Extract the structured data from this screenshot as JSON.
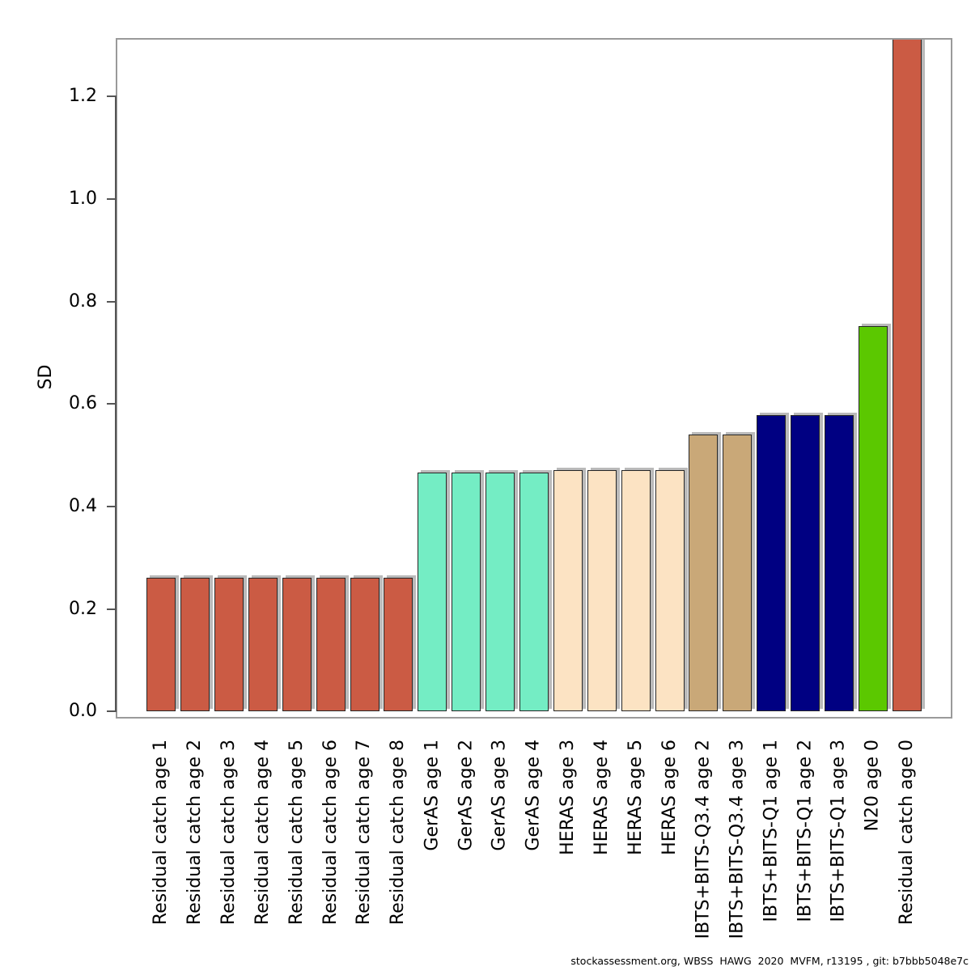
{
  "figure": {
    "ylabel": "SD",
    "footer": "stockassessment.org, WBSS  HAWG  2020  MVFM, r13195 , git: b7bbb5048e7c"
  },
  "chart_data": {
    "type": "bar",
    "title": "",
    "xlabel": "",
    "ylabel": "SD",
    "ylim": [
      0,
      1.32
    ],
    "grid": false,
    "legend": false,
    "yticks": [
      0.0,
      0.2,
      0.4,
      0.6,
      0.8,
      1.0,
      1.2
    ],
    "ytick_labels": [
      "0.0",
      "0.2",
      "0.4",
      "0.6",
      "0.8",
      "1.0",
      "1.2"
    ],
    "categories": [
      "Residual catch age 1",
      "Residual catch age 2",
      "Residual catch age 3",
      "Residual catch age 4",
      "Residual catch age 5",
      "Residual catch age 6",
      "Residual catch age 7",
      "Residual catch age 8",
      "GerAS age 1",
      "GerAS age 2",
      "GerAS age 3",
      "GerAS age 4",
      "HERAS age 3",
      "HERAS age 4",
      "HERAS age 5",
      "HERAS age 6",
      "IBTS+BITS-Q3.4 age 2",
      "IBTS+BITS-Q3.4 age 3",
      "IBTS+BITS-Q1 age 1",
      "IBTS+BITS-Q1 age 2",
      "IBTS+BITS-Q1 age 3",
      "N20 age 0",
      "Residual catch age 0"
    ],
    "values": [
      0.261,
      0.261,
      0.261,
      0.261,
      0.261,
      0.261,
      0.261,
      0.261,
      0.466,
      0.466,
      0.466,
      0.466,
      0.471,
      0.471,
      0.471,
      0.471,
      0.54,
      0.54,
      0.578,
      0.578,
      0.578,
      0.752,
      1.314
    ],
    "colors": [
      "#CB5B44",
      "#CB5B44",
      "#CB5B44",
      "#CB5B44",
      "#CB5B44",
      "#CB5B44",
      "#CB5B44",
      "#CB5B44",
      "#74EDC4",
      "#74EDC4",
      "#74EDC4",
      "#74EDC4",
      "#FCE3C3",
      "#FCE3C3",
      "#FCE3C3",
      "#FCE3C3",
      "#C9A878",
      "#C9A878",
      "#000082",
      "#000082",
      "#000082",
      "#5BC800",
      "#CB5B44"
    ],
    "bar_outline": "#262626",
    "axis_color": "#555555",
    "box_color": "#9a9a9a"
  }
}
